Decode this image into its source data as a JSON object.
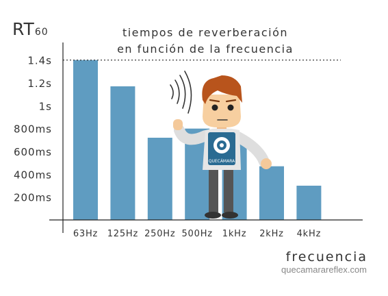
{
  "chart_data": {
    "type": "bar",
    "title_lines": [
      "tiempos de reverberación",
      "en función de la frecuencia"
    ],
    "ylabel_main": "RT",
    "ylabel_sub": "60",
    "xlabel": "frecuencia",
    "categories": [
      "63Hz",
      "125Hz",
      "250Hz",
      "500Hz",
      "1kHz",
      "2kHz",
      "4kHz"
    ],
    "values": [
      1.4,
      1.17,
      0.72,
      0.8,
      0.68,
      0.47,
      0.3
    ],
    "y_ticks": [
      {
        "value": 0.2,
        "label": "200ms"
      },
      {
        "value": 0.4,
        "label": "400ms"
      },
      {
        "value": 0.6,
        "label": "600ms"
      },
      {
        "value": 0.8,
        "label": "800ms"
      },
      {
        "value": 1.0,
        "label": "1s"
      },
      {
        "value": 1.2,
        "label": "1.2s"
      },
      {
        "value": 1.4,
        "label": "1.4s"
      }
    ],
    "ylim": [
      0,
      1.6
    ],
    "reference_line": 1.4,
    "bar_color": "#5f9cc1",
    "grid": false
  },
  "mascot": {
    "shirt_logo_text": "QUECÁMARA"
  },
  "credit": "quecamarareflex.com"
}
